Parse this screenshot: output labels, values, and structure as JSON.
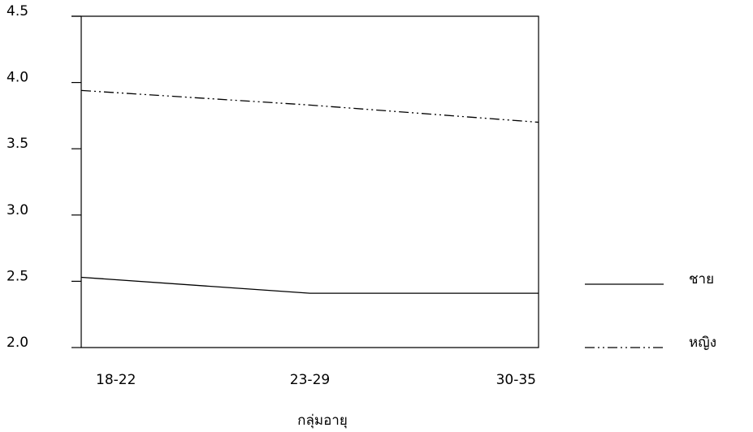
{
  "chart_data": {
    "type": "line",
    "x_label": "กลุ่มอายุ",
    "categories": [
      "18-22",
      "23-29",
      "30-35"
    ],
    "series": [
      {
        "name": "ชาย",
        "color": "#000000",
        "linestyle": "solid",
        "values": [
          2.53,
          2.41,
          2.41
        ]
      },
      {
        "name": "หญิง",
        "color": "#000000",
        "linestyle": "dashdotdot",
        "values": [
          3.94,
          3.83,
          3.7
        ]
      }
    ],
    "ylim": [
      2.0,
      4.5
    ],
    "yticks": [
      {
        "value": 2,
        "label": "2.0"
      },
      2.5,
      {
        "value": 3,
        "label": "3.0"
      },
      3.5,
      {
        "value": 4,
        "label": "4.0"
      },
      4.5
    ],
    "legend": "right"
  }
}
